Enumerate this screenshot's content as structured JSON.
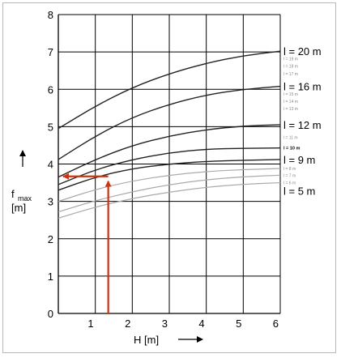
{
  "chart_data": {
    "type": "line",
    "xlabel": "H [m]",
    "ylabel_main": "f",
    "ylabel_sub": "max",
    "ylabel_unit": "[m]",
    "xlim": [
      0,
      6
    ],
    "ylim": [
      0,
      8
    ],
    "x_ticks": [
      "1",
      "2",
      "3",
      "4",
      "5",
      "6"
    ],
    "y_ticks": [
      "0",
      "1",
      "2",
      "3",
      "4",
      "5",
      "6",
      "7",
      "8"
    ],
    "grid": true,
    "curve_x": [
      0,
      1,
      2,
      3,
      4,
      5,
      6
    ],
    "series": [
      {
        "name": "l = 20 m",
        "style": "bold-label",
        "values": [
          4.95,
          5.55,
          6.05,
          6.42,
          6.7,
          6.9,
          7.02
        ]
      },
      {
        "name": "l = 19 m",
        "style": "small-label",
        "values": [
          null,
          null,
          null,
          null,
          null,
          null,
          6.82
        ]
      },
      {
        "name": "l = 18 m",
        "style": "small-label",
        "values": [
          null,
          null,
          null,
          null,
          null,
          null,
          6.62
        ]
      },
      {
        "name": "l = 17 m",
        "style": "small-label",
        "values": [
          null,
          null,
          null,
          null,
          null,
          null,
          6.42
        ]
      },
      {
        "name": "l = 16 m",
        "style": "bold-label",
        "values": [
          4.12,
          4.75,
          5.25,
          5.6,
          5.85,
          6.0,
          6.08
        ]
      },
      {
        "name": "l = 15 m",
        "style": "small-label",
        "values": [
          null,
          null,
          null,
          null,
          null,
          null,
          5.88
        ]
      },
      {
        "name": "l = 14 m",
        "style": "small-label",
        "values": [
          null,
          null,
          null,
          null,
          null,
          null,
          5.68
        ]
      },
      {
        "name": "l = 13 m",
        "style": "small-label",
        "values": [
          null,
          null,
          null,
          null,
          null,
          null,
          5.48
        ]
      },
      {
        "name": "l = 12 m",
        "style": "bold-label",
        "values": [
          3.65,
          4.12,
          4.5,
          4.75,
          4.92,
          5.02,
          5.05
        ]
      },
      {
        "name": "l = 11 m",
        "style": "small-label",
        "values": [
          null,
          null,
          null,
          null,
          null,
          null,
          4.72
        ]
      },
      {
        "name": "l = 10 m",
        "style": "mid-label",
        "values": [
          3.45,
          3.85,
          4.12,
          4.3,
          4.4,
          4.42,
          4.43
        ]
      },
      {
        "name": "l = 9 m",
        "style": "bold-label",
        "values": [
          3.3,
          3.65,
          3.88,
          4.0,
          4.07,
          4.1,
          4.12
        ]
      },
      {
        "name": "l = 8 m",
        "style": "small-label",
        "values": [
          3.0,
          3.32,
          3.55,
          3.7,
          3.8,
          3.85,
          3.88
        ]
      },
      {
        "name": "l = 7 m",
        "style": "small-label",
        "values": [
          2.72,
          3.02,
          3.26,
          3.45,
          3.58,
          3.66,
          3.7
        ]
      },
      {
        "name": "l = 6 m",
        "style": "small-label",
        "values": [
          2.55,
          2.85,
          3.08,
          3.25,
          3.38,
          3.46,
          3.5
        ]
      },
      {
        "name": "l = 5 m",
        "style": "bold-label",
        "values": [
          null,
          null,
          null,
          null,
          null,
          null,
          3.28
        ]
      }
    ],
    "annotation": {
      "x": 1.35,
      "y": 3.67,
      "color": "#cc3311"
    }
  }
}
